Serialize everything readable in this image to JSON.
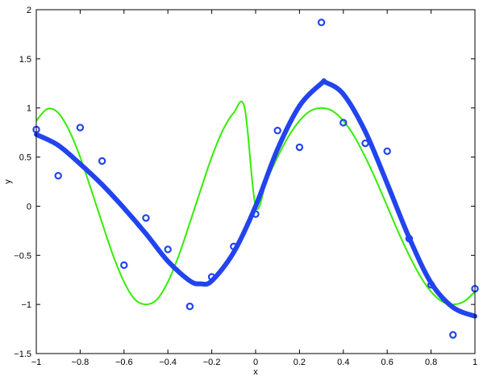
{
  "chart_data": {
    "type": "scatter",
    "title": "",
    "xlabel": "x",
    "ylabel": "y",
    "xlim": [
      -1,
      1
    ],
    "ylim": [
      -1.5,
      2
    ],
    "grid": false,
    "x_ticks": [
      -1,
      -0.8,
      -0.6,
      -0.4,
      -0.2,
      0,
      0.2,
      0.4,
      0.6,
      0.8,
      1
    ],
    "x_tick_labels": [
      "−1",
      "−0.8",
      "−0.6",
      "−0.4",
      "−0.2",
      "0",
      "0.2",
      "0.4",
      "0.6",
      "0.8",
      "1"
    ],
    "y_ticks": [
      -1.5,
      -1,
      -0.5,
      0,
      0.5,
      1,
      1.5,
      2
    ],
    "y_tick_labels": [
      "−1.5",
      "−1",
      "−0.5",
      "0",
      "0.5",
      "1",
      "1.5",
      "2"
    ],
    "series": [
      {
        "kind": "curve",
        "color": "#33ee00",
        "x": [
          -1.0,
          -0.95,
          -0.9,
          -0.85,
          -0.8,
          -0.75,
          -0.7,
          -0.65,
          -0.6,
          -0.55,
          -0.5,
          -0.45,
          -0.4,
          -0.35,
          -0.3,
          -0.25,
          -0.2,
          -0.15,
          -0.1,
          -0.05,
          0.0,
          0.05,
          0.1,
          0.15,
          0.2,
          0.25,
          0.3,
          0.35,
          0.4,
          0.45,
          0.5,
          0.55,
          0.6,
          0.65,
          0.7,
          0.75,
          0.8,
          0.85,
          0.9,
          0.95,
          1.0
        ],
        "y": [
          0.87,
          0.99,
          0.95,
          0.77,
          0.5,
          0.17,
          -0.17,
          -0.5,
          -0.77,
          -0.95,
          -1.0,
          -0.95,
          -0.77,
          -0.5,
          -0.17,
          0.17,
          0.5,
          0.77,
          0.95,
          1.0,
          0.0,
          0.26,
          0.5,
          0.71,
          0.87,
          0.97,
          1.0,
          0.97,
          0.87,
          0.71,
          0.5,
          0.26,
          0.0,
          -0.26,
          -0.5,
          -0.71,
          -0.87,
          -0.97,
          -1.0,
          -0.97,
          -0.87
        ]
      },
      {
        "kind": "fit",
        "color": "#2244ee",
        "x": [
          -1.0,
          -0.9,
          -0.8,
          -0.7,
          -0.6,
          -0.5,
          -0.4,
          -0.3,
          -0.25,
          -0.2,
          -0.1,
          0.0,
          0.1,
          0.2,
          0.3,
          0.32,
          0.4,
          0.5,
          0.6,
          0.7,
          0.8,
          0.9,
          1.0
        ],
        "y": [
          0.73,
          0.62,
          0.43,
          0.22,
          -0.02,
          -0.28,
          -0.56,
          -0.76,
          -0.79,
          -0.76,
          -0.47,
          0.0,
          0.58,
          1.02,
          1.25,
          1.26,
          1.14,
          0.76,
          0.23,
          -0.32,
          -0.78,
          -1.03,
          -1.12
        ]
      },
      {
        "kind": "points",
        "color": "#2244ee",
        "x": [
          -1.0,
          -0.9,
          -0.8,
          -0.7,
          -0.6,
          -0.5,
          -0.4,
          -0.3,
          -0.2,
          -0.1,
          0.0,
          0.1,
          0.2,
          0.3,
          0.4,
          0.5,
          0.6,
          0.7,
          0.8,
          0.9,
          1.0
        ],
        "y": [
          0.78,
          0.31,
          0.8,
          0.46,
          -0.6,
          -0.12,
          -0.44,
          -1.02,
          -0.72,
          -0.41,
          -0.08,
          0.77,
          0.6,
          1.87,
          0.85,
          0.64,
          0.56,
          -0.33,
          -0.8,
          -1.31,
          -0.84
        ]
      }
    ]
  }
}
